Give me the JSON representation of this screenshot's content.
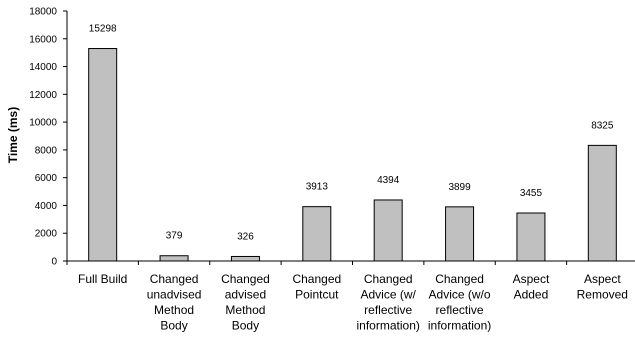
{
  "chart_data": {
    "type": "bar",
    "ylabel": "Time (ms)",
    "xlabel": "",
    "ylim": [
      0,
      18000
    ],
    "yticks": [
      0,
      2000,
      4000,
      6000,
      8000,
      10000,
      12000,
      14000,
      16000,
      18000
    ],
    "grid": false,
    "legend": "none",
    "bar_color": "#c0c0c0",
    "categories": [
      "Full Build",
      "Changed unadvised Method Body",
      "Changed advised Method Body",
      "Changed Pointcut",
      "Changed Advice (w/ reflective information)",
      "Changed Advice (w/o reflective information)",
      "Aspect Added",
      "Aspect Removed"
    ],
    "category_lines": [
      [
        "Full Build"
      ],
      [
        "Changed",
        "unadvised",
        "Method",
        "Body"
      ],
      [
        "Changed",
        "advised",
        "Method",
        "Body"
      ],
      [
        "Changed",
        "Pointcut"
      ],
      [
        "Changed",
        "Advice (w/",
        "reflective",
        "information)"
      ],
      [
        "Changed",
        "Advice (w/o",
        "reflective",
        "information)"
      ],
      [
        "Aspect",
        "Added"
      ],
      [
        "Aspect",
        "Removed"
      ]
    ],
    "values": [
      15298,
      379,
      326,
      3913,
      4394,
      3899,
      3455,
      8325
    ]
  }
}
